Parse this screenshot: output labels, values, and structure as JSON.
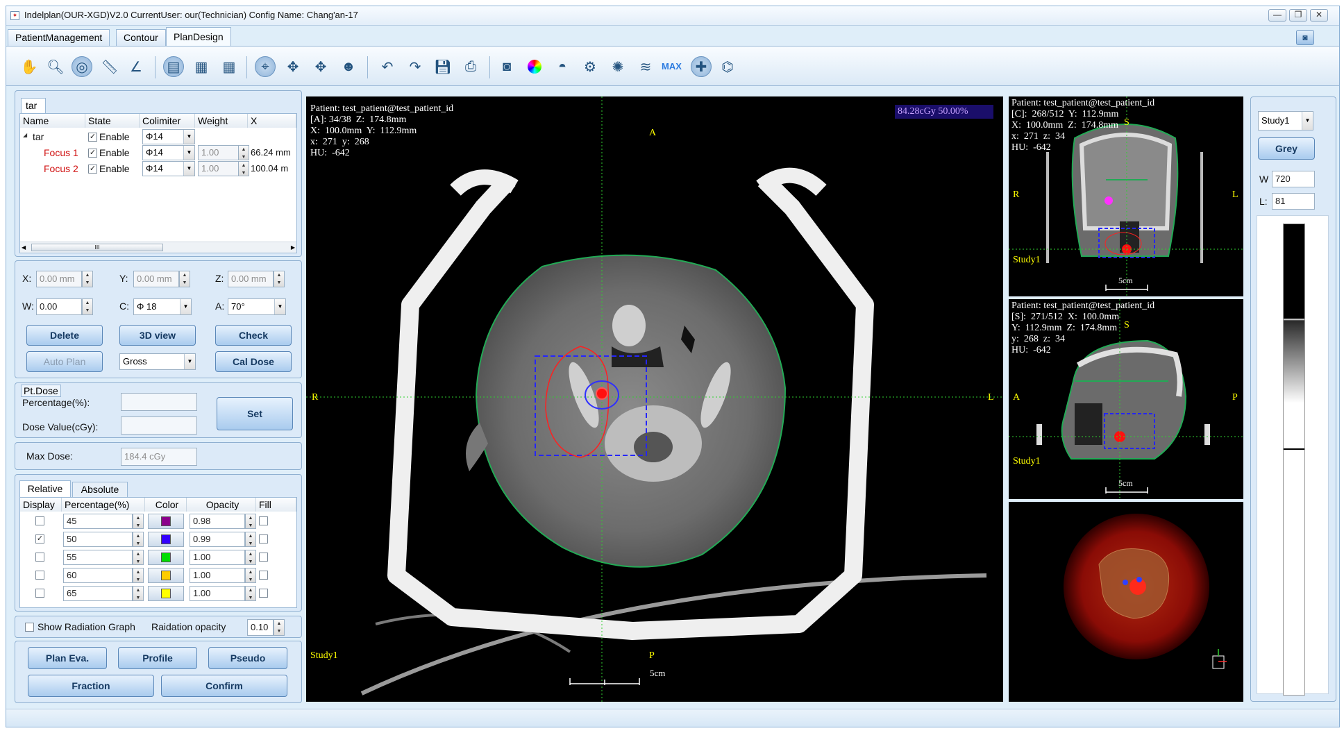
{
  "window": {
    "title": "Indelplan(OUR-XGD)V2.0 CurrentUser: our(Technician) Config Name: Chang'an-17",
    "controls": [
      "—",
      "❐",
      "✕"
    ]
  },
  "tabs": [
    {
      "label": "PatientManagement"
    },
    {
      "label": "Contour"
    },
    {
      "label": "PlanDesign"
    }
  ],
  "toolbar": {
    "max_label": "MAX"
  },
  "target_tree": {
    "tab_label": "tar",
    "columns": [
      "Name",
      "State",
      "Colimiter",
      "Weight",
      "X"
    ],
    "rows": [
      {
        "name": "tar",
        "state": "Enable",
        "colimiter": "Φ14",
        "weight": "",
        "x": ""
      },
      {
        "name": "Focus 1",
        "state": "Enable",
        "colimiter": "Φ14",
        "weight": "1.00",
        "x": "66.24 mm"
      },
      {
        "name": "Focus 2",
        "state": "Enable",
        "colimiter": "Φ14",
        "weight": "1.00",
        "x": "100.04 m"
      }
    ],
    "scroll_grip": "III",
    "expander": "◢"
  },
  "focus_params": {
    "x_label": "X:",
    "x_value": "0.00 mm",
    "y_label": "Y:",
    "y_value": "0.00 mm",
    "z_label": "Z:",
    "z_value": "0.00 mm",
    "w_label": "W:",
    "w_value": "0.00",
    "c_label": "C:",
    "c_value": "Φ 18",
    "a_label": "A:",
    "a_value": "70°",
    "delete_label": "Delete",
    "view3d_label": "3D view",
    "check_label": "Check",
    "autoplan_label": "Auto Plan",
    "mode_value": "Gross",
    "caldose_label": "Cal Dose"
  },
  "pt_dose": {
    "group_label": "Pt.Dose",
    "percentage_label": "Percentage(%):",
    "dose_value_label": "Dose Value(cGy):",
    "set_label": "Set"
  },
  "max_dose": {
    "label": "Max Dose:",
    "value": "184.4 cGy"
  },
  "isodose": {
    "tabs": [
      "Relative",
      "Absolute"
    ],
    "columns": [
      "Display",
      "Percentage(%)",
      "Color",
      "Opacity",
      "Fill"
    ],
    "rows": [
      {
        "display": false,
        "percentage": "45",
        "color": "#8b008b",
        "opacity": "0.98"
      },
      {
        "display": true,
        "percentage": "50",
        "color": "#3300ff",
        "opacity": "0.99"
      },
      {
        "display": false,
        "percentage": "55",
        "color": "#00dd00",
        "opacity": "1.00"
      },
      {
        "display": false,
        "percentage": "60",
        "color": "#ffcc00",
        "opacity": "1.00"
      },
      {
        "display": false,
        "percentage": "65",
        "color": "#ffff00",
        "opacity": "1.00"
      }
    ]
  },
  "radiation": {
    "show_label": "Show Radiation Graph",
    "opacity_label": "Raidation opacity",
    "opacity_value": "0.10"
  },
  "actions": {
    "plan_eva": "Plan Eva.",
    "profile": "Profile",
    "pseudo": "Pseudo",
    "fraction": "Fraction",
    "confirm": "Confirm"
  },
  "axial_view": {
    "info": "Patient: test_patient@test_patient_id\n[A]: 34/38  Z:  174.8mm\nX:  100.0mm  Y:  112.9mm\nx:  271  y:  268\nHU:  -642",
    "dose_readout": "84.28cGy  50.00%",
    "orient_top": "A",
    "orient_bottom": "P",
    "orient_left": "R",
    "orient_right": "L",
    "study": "Study1",
    "scale": "5cm"
  },
  "coronal_view": {
    "info": "Patient: test_patient@test_patient_id\n[C]:  268/512  Y:  112.9mm\nX:  100.0mm  Z:  174.8mm\nx:  271  z:  34\nHU:  -642",
    "orient_top": "S",
    "orient_left": "R",
    "orient_right": "L",
    "study": "Study1",
    "scale": "5cm"
  },
  "sagittal_view": {
    "info": "Patient: test_patient@test_patient_id\n[S]:  271/512  X:  100.0mm\nY:  112.9mm  Z:  174.8mm\ny:  268  z:  34\nHU:  -642",
    "orient_top": "S",
    "orient_left": "A",
    "orient_right": "P",
    "study": "Study1",
    "scale": "5cm"
  },
  "window_level": {
    "study_value": "Study1",
    "grey_label": "Grey",
    "w_label": "W",
    "w_value": "720",
    "l_label": "L:",
    "l_value": "81"
  }
}
